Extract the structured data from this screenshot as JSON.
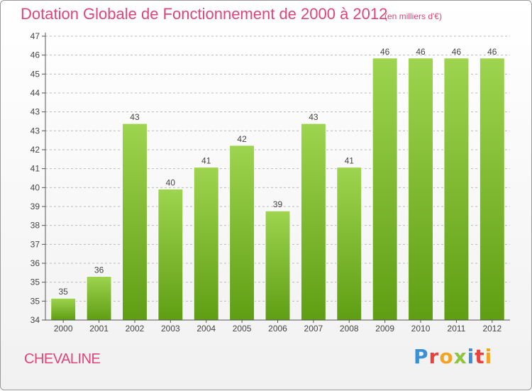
{
  "header": {
    "title": "Dotation Globale de Fonctionnement de 2000 à 2012",
    "unit_note": "(en milliers d'€)"
  },
  "footer": {
    "commune": "CHEVALINE",
    "logo": "Proxiti",
    "logo_colors": [
      "#3a8fd6",
      "#e8423f",
      "#f2a524",
      "#8cc63f",
      "#3a8fd6",
      "#e8423f",
      "#f2a524"
    ]
  },
  "colors": {
    "accent": "#e0447a",
    "bar_top": "#9ed44f",
    "bar_bottom": "#5f9e14",
    "grid": "#bbbbbb"
  },
  "chart_data": {
    "type": "bar",
    "title": "Dotation Globale de Fonctionnement de 2000 à 2012",
    "subtitle": "(en milliers d'€)",
    "xlabel": "",
    "ylabel": "",
    "categories": [
      "2000",
      "2001",
      "2002",
      "2003",
      "2004",
      "2005",
      "2006",
      "2007",
      "2008",
      "2009",
      "2010",
      "2011",
      "2012"
    ],
    "values": [
      35,
      36,
      43,
      40,
      41,
      42,
      39,
      43,
      41,
      46,
      46,
      46,
      46
    ],
    "data_labels": [
      "35",
      "36",
      "43",
      "40",
      "41",
      "42",
      "39",
      "43",
      "41",
      "46",
      "46",
      "46",
      "46"
    ],
    "y_ticks": [
      "34",
      "35",
      "35",
      "36",
      "37",
      "38",
      "39",
      "40",
      "41",
      "42",
      "43",
      "43",
      "44",
      "45",
      "46",
      "47"
    ],
    "ylim": [
      34,
      47
    ],
    "grid": true,
    "legend": "none"
  }
}
